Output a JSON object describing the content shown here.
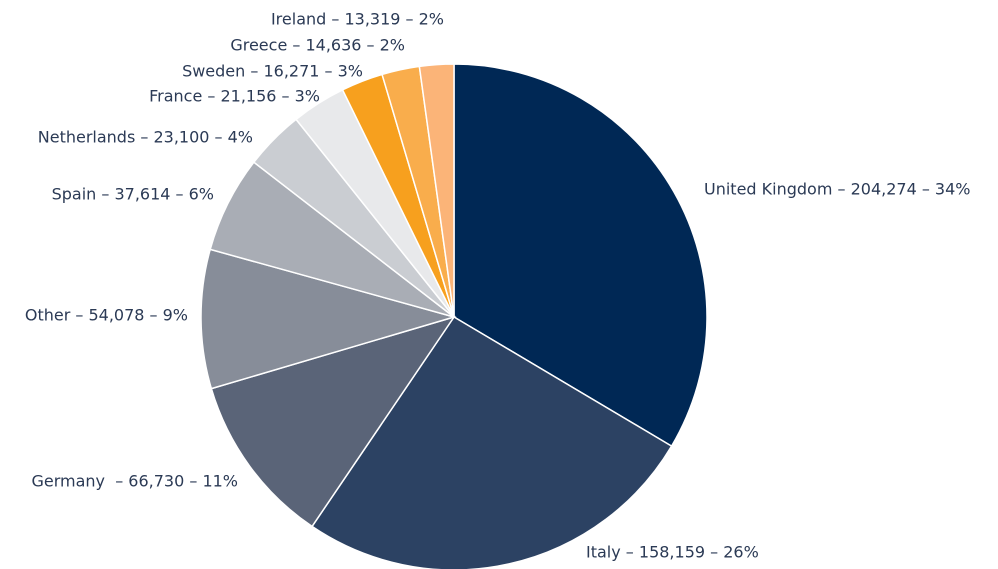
{
  "chart_data": {
    "type": "pie",
    "categories": [
      "United Kingdom",
      "Italy",
      "Germany",
      "Other",
      "Spain",
      "Netherlands",
      "France",
      "Sweden",
      "Greece",
      "Ireland"
    ],
    "values": [
      204274,
      158159,
      66730,
      54078,
      37614,
      23100,
      21156,
      16271,
      14636,
      13319
    ],
    "labels": [
      "United Kingdom – 204,274 – 34%",
      "Italy – 158,159 – 26%",
      "Germany  – 66,730 – 11%",
      "Other – 54,078 – 9%",
      "Spain – 37,614 – 6%",
      "Netherlands – 23,100 – 4%",
      "France – 21,156 – 3%",
      "Sweden – 16,271 – 3%",
      "Greece – 14,636 – 2%",
      "Ireland – 13,319 – 2%"
    ],
    "colors": [
      "#002855",
      "#2c4263",
      "#5a6478",
      "#878d99",
      "#a9adb5",
      "#cacdd2",
      "#e8e9eb",
      "#f7a01e",
      "#f9ad4c",
      "#fbb478"
    ]
  }
}
